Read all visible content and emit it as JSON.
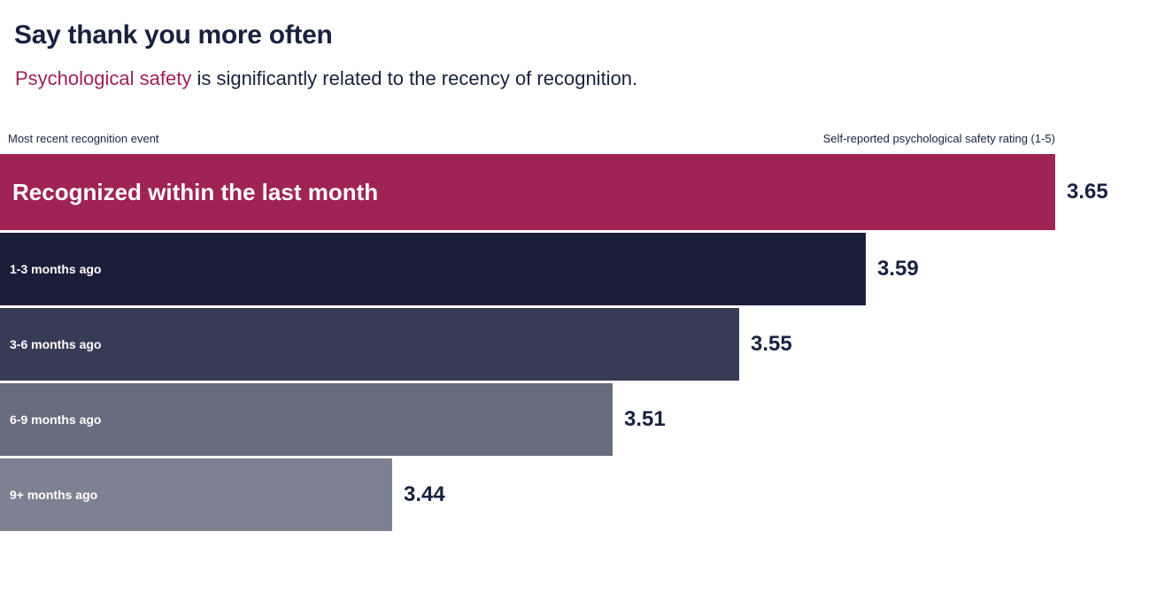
{
  "page": {
    "title": "Say thank you more often",
    "subtitle_highlight": "Psychological safety",
    "subtitle_rest": " is significantly related to the recency of recognition."
  },
  "chart_data": {
    "type": "bar",
    "orientation": "horizontal",
    "title": "Say thank you more often",
    "subtitle": "Psychological safety is significantly related to the recency of recognition.",
    "left_axis_header": "Most recent recognition event",
    "right_axis_header": "Self-reported psychological safety rating (1-5)",
    "categories": [
      "Recognized within the last month",
      "1-3 months ago",
      "3-6 months ago",
      "6-9 months ago",
      "9+ months ago"
    ],
    "values": [
      3.65,
      3.59,
      3.55,
      3.51,
      3.44
    ],
    "value_labels": [
      "3.65",
      "3.59",
      "3.55",
      "3.51",
      "3.44"
    ],
    "bar_colors": [
      "#A02355",
      "#1B1E39",
      "#373B55",
      "#666B7E",
      "#7D8191"
    ],
    "xlim": [
      3.316,
      3.65
    ],
    "rating_scale": "1-5",
    "grid": false,
    "legend": false,
    "colors": {
      "accent": "#A02355",
      "text": "#1A2240",
      "bar_label": "#FFFFFF",
      "background": "#FFFFFF"
    }
  }
}
